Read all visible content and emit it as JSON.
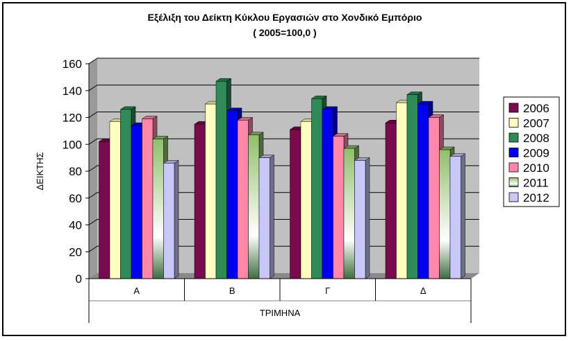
{
  "chart_data": {
    "type": "bar",
    "title": "Εξέλιξη του Δείκτη Κύκλου Εργασιών στο Χονδικό Εμπόριο",
    "subtitle": "( 2005=100,0 )",
    "xlabel": "ΤΡΙΜΗΝΑ",
    "ylabel": "ΔΕΙΚΤΗΣ",
    "categories": [
      "Α",
      "Β",
      "Γ",
      "Δ"
    ],
    "ylim": [
      0,
      160
    ],
    "yticks": [
      0,
      20,
      40,
      60,
      80,
      100,
      120,
      140,
      160
    ],
    "grid": true,
    "legend_position": "right",
    "three_d": true,
    "series": [
      {
        "name": "2006",
        "color": "#7a0a4e",
        "values": [
          102,
          115,
          111,
          116
        ]
      },
      {
        "name": "2007",
        "color": "#ffffc0",
        "values": [
          117,
          130,
          117,
          131
        ]
      },
      {
        "name": "2008",
        "color": "#2e8b57",
        "values": [
          126,
          147,
          134,
          137
        ]
      },
      {
        "name": "2009",
        "color": "#0000ee",
        "values": [
          114,
          125,
          126,
          130
        ]
      },
      {
        "name": "2010",
        "color": "#ff88aa",
        "values": [
          119,
          118,
          106,
          120
        ]
      },
      {
        "name": "2011",
        "color": "#8fbf6a",
        "values": [
          104,
          107,
          97,
          96
        ]
      },
      {
        "name": "2012",
        "color": "#c8c8f8",
        "values": [
          86,
          90,
          88,
          91
        ]
      }
    ]
  }
}
